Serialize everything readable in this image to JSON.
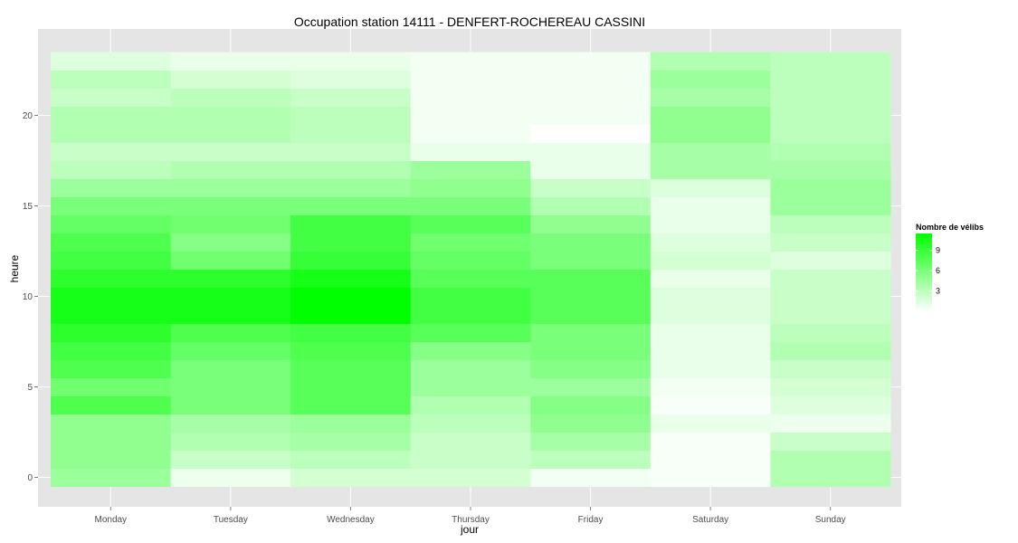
{
  "chart_data": {
    "type": "heatmap",
    "title": "Occupation station 14111 - DENFERT-ROCHEREAU CASSINI",
    "xlabel": "jour",
    "ylabel": "heure",
    "x": [
      "Monday",
      "Tuesday",
      "Wednesday",
      "Thursday",
      "Friday",
      "Saturday",
      "Sunday"
    ],
    "y": [
      0,
      1,
      2,
      3,
      4,
      5,
      6,
      7,
      8,
      9,
      10,
      11,
      12,
      13,
      14,
      15,
      16,
      17,
      18,
      19,
      20,
      21,
      22,
      23
    ],
    "yticks": [
      0,
      5,
      10,
      15,
      20
    ],
    "ylim": [
      -0.5,
      23.5
    ],
    "values": [
      [
        4.5,
        0.8,
        2.0,
        2.0,
        0.5,
        0.3,
        3.5
      ],
      [
        5.0,
        2.5,
        3.0,
        2.5,
        3.0,
        0.3,
        3.5
      ],
      [
        5.0,
        3.5,
        4.0,
        2.5,
        4.0,
        0.3,
        2.5
      ],
      [
        5.0,
        4.0,
        4.5,
        3.0,
        5.0,
        1.0,
        0.8
      ],
      [
        8.0,
        6.0,
        7.5,
        3.5,
        5.5,
        0.3,
        1.5
      ],
      [
        6.5,
        6.0,
        7.5,
        4.5,
        4.5,
        0.5,
        2.0
      ],
      [
        8.0,
        6.0,
        7.5,
        4.5,
        5.5,
        1.0,
        2.5
      ],
      [
        8.5,
        7.0,
        8.0,
        5.5,
        6.0,
        1.0,
        3.5
      ],
      [
        9.5,
        8.0,
        8.5,
        7.5,
        6.0,
        1.0,
        3.0
      ],
      [
        10.5,
        10.5,
        11.5,
        8.5,
        7.5,
        1.5,
        2.5
      ],
      [
        10.5,
        10.5,
        11.5,
        8.5,
        7.5,
        1.5,
        2.5
      ],
      [
        9.5,
        9.5,
        10.5,
        7.5,
        7.5,
        1.0,
        2.5
      ],
      [
        8.5,
        6.5,
        9.0,
        7.0,
        6.0,
        2.0,
        1.5
      ],
      [
        8.0,
        5.5,
        8.5,
        6.5,
        6.0,
        1.5,
        2.5
      ],
      [
        7.0,
        6.5,
        8.5,
        7.5,
        5.0,
        1.0,
        3.0
      ],
      [
        6.0,
        6.0,
        6.0,
        6.0,
        3.5,
        1.0,
        4.5
      ],
      [
        4.5,
        4.5,
        4.5,
        5.0,
        2.5,
        1.5,
        4.5
      ],
      [
        3.0,
        3.5,
        3.5,
        4.5,
        1.0,
        4.0,
        4.0
      ],
      [
        2.5,
        2.5,
        2.5,
        1.0,
        1.0,
        4.0,
        3.5
      ],
      [
        3.5,
        3.5,
        3.0,
        0.5,
        0.0,
        5.0,
        3.0
      ],
      [
        3.5,
        3.5,
        3.0,
        0.5,
        0.5,
        5.0,
        3.0
      ],
      [
        2.5,
        3.0,
        2.5,
        0.5,
        0.5,
        4.0,
        3.0
      ],
      [
        3.0,
        2.0,
        1.5,
        0.5,
        0.5,
        4.5,
        3.0
      ],
      [
        1.5,
        1.0,
        1.0,
        0.5,
        0.5,
        3.5,
        3.0
      ]
    ],
    "color_scale": {
      "low": "#ffffff",
      "high": "#00ff00",
      "min": 0,
      "max": 11.5
    },
    "legend": {
      "title": "Nombre de vélibs",
      "ticks": [
        3,
        6,
        9
      ],
      "placement": "right"
    },
    "grid": true,
    "panel_background": "#e5e5e5"
  }
}
